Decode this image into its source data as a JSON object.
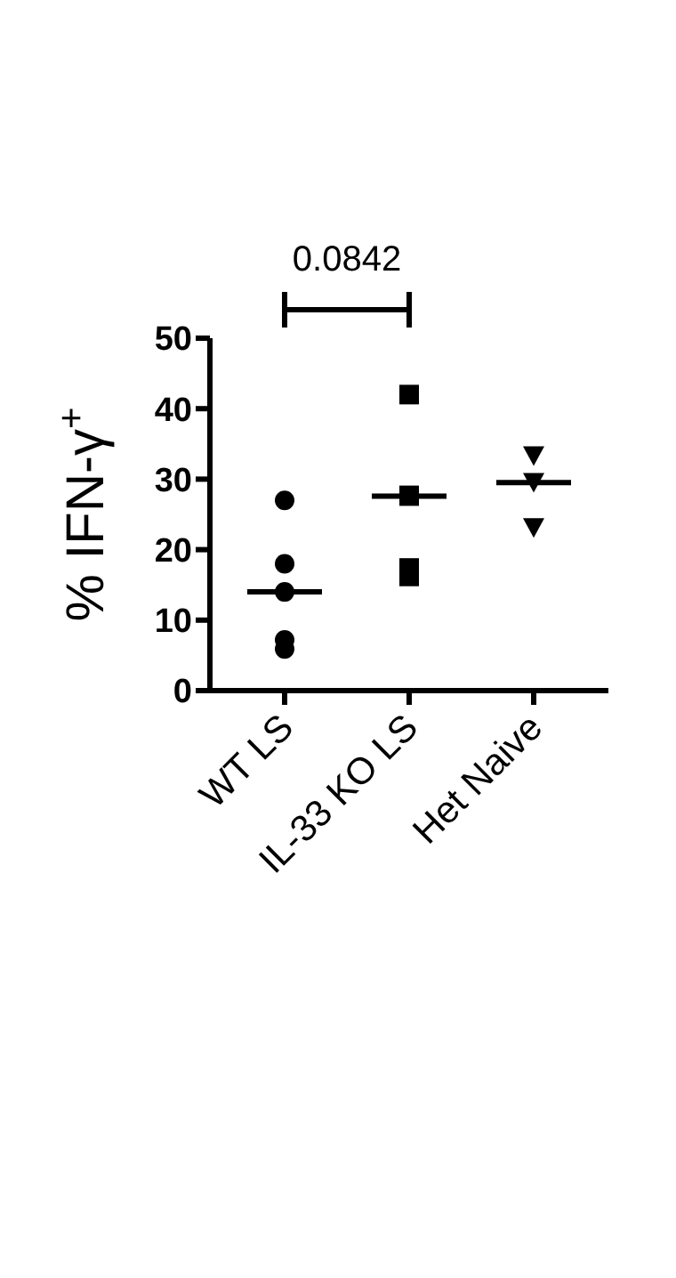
{
  "chart_data": {
    "type": "scatter",
    "ylabel": "% IFN-γ$^{+}$",
    "categories": [
      "WT LS",
      "IL-33 KO LS",
      "Het Naive"
    ],
    "series": [
      {
        "type": "scatter",
        "marker": "circle",
        "color": "#000000",
        "x": [
          "WT LS",
          "WT LS",
          "WT LS",
          "WT LS",
          "WT LS"
        ],
        "values": [
          27,
          18,
          14,
          7.2,
          5.9
        ]
      },
      {
        "type": "scatter",
        "marker": "square",
        "color": "#000000",
        "x": [
          "IL-33 KO LS",
          "IL-33 KO LS",
          "IL-33 KO LS",
          "IL-33 KO LS",
          "IL-33 KO LS"
        ],
        "values": [
          42,
          27.6,
          27.7,
          17.4,
          16.2
        ]
      },
      {
        "type": "scatter",
        "marker": "triangle",
        "color": "#000000",
        "x": [
          "Het Naive",
          "Het Naive",
          "Het Naive"
        ],
        "values": [
          33.4,
          29.6,
          23.2
        ]
      },
      {
        "type": "box",
        "color": "#000000",
        "boxes": [
          {
            "low": 14,
            "q1": 14,
            "median": 14,
            "q3": 14,
            "high": 14
          },
          {
            "low": 27.6,
            "q1": 27.6,
            "median": 27.6,
            "q3": 27.6,
            "high": 27.6
          },
          {
            "low": 29.5,
            "q1": 29.5,
            "median": 29.5,
            "q3": 29.5,
            "high": 29.5
          }
        ]
      }
    ],
    "ylim": [
      0,
      50
    ],
    "yticks": [
      0,
      10,
      20,
      30,
      40,
      50
    ],
    "grid": false,
    "annotations": [
      "0.0842"
    ]
  }
}
